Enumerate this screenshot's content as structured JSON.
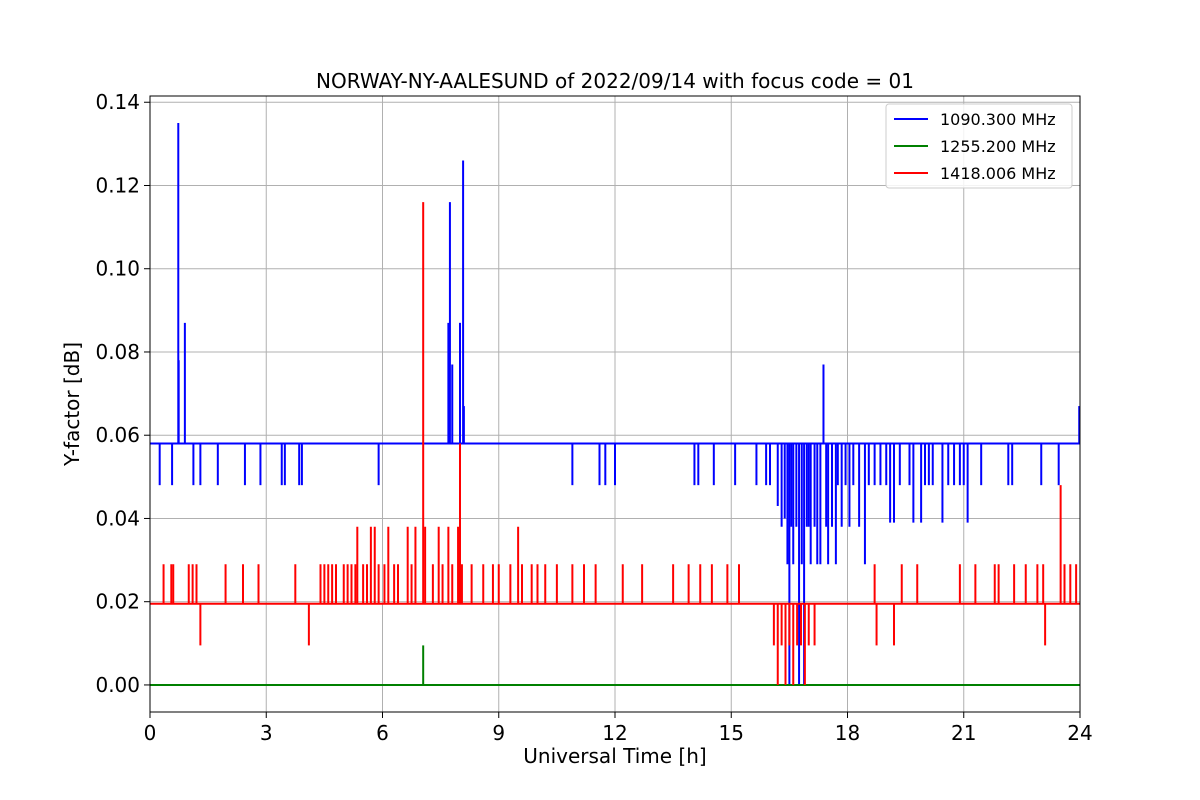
{
  "chart_data": {
    "type": "line",
    "title": "NORWAY-NY-AALESUND of 2022/09/14 with focus code = 01",
    "xlabel": "Universal Time [h]",
    "ylabel": "Y-factor [dB]",
    "xlim": [
      0,
      24
    ],
    "ylim": [
      -0.0065,
      0.1415
    ],
    "x_ticks": [
      0,
      3,
      6,
      9,
      12,
      15,
      18,
      21,
      24
    ],
    "x_tick_labels": [
      "0",
      "3",
      "6",
      "9",
      "12",
      "15",
      "18",
      "21",
      "24"
    ],
    "y_ticks": [
      0.0,
      0.02,
      0.04,
      0.06,
      0.08,
      0.1,
      0.12,
      0.14
    ],
    "y_tick_labels": [
      "0.00",
      "0.02",
      "0.04",
      "0.06",
      "0.08",
      "0.10",
      "0.12",
      "0.14"
    ],
    "grid": true,
    "legend_position": "top-right",
    "series": [
      {
        "name": "1090.300 MHz",
        "color": "#0000ff",
        "baseline": 0.058,
        "spikes": [
          [
            0.25,
            0.048
          ],
          [
            0.57,
            0.048
          ],
          [
            0.73,
            0.135
          ],
          [
            0.74,
            0.078
          ],
          [
            0.9,
            0.087
          ],
          [
            1.12,
            0.048
          ],
          [
            1.3,
            0.048
          ],
          [
            1.75,
            0.048
          ],
          [
            2.45,
            0.048
          ],
          [
            2.85,
            0.048
          ],
          [
            3.4,
            0.048
          ],
          [
            3.48,
            0.048
          ],
          [
            3.85,
            0.048
          ],
          [
            3.92,
            0.048
          ],
          [
            5.9,
            0.048
          ],
          [
            7.7,
            0.087
          ],
          [
            7.74,
            0.116
          ],
          [
            7.8,
            0.077
          ],
          [
            8.0,
            0.087
          ],
          [
            8.08,
            0.126
          ],
          [
            8.1,
            0.067
          ],
          [
            10.9,
            0.048
          ],
          [
            11.6,
            0.048
          ],
          [
            11.75,
            0.048
          ],
          [
            12.0,
            0.048
          ],
          [
            14.05,
            0.048
          ],
          [
            14.15,
            0.048
          ],
          [
            14.55,
            0.048
          ],
          [
            15.1,
            0.048
          ],
          [
            15.65,
            0.048
          ],
          [
            15.9,
            0.048
          ],
          [
            16.0,
            0.048
          ],
          [
            16.2,
            0.043
          ],
          [
            16.3,
            0.038
          ],
          [
            16.38,
            0.04
          ],
          [
            16.45,
            0.029
          ],
          [
            16.5,
            0.0
          ],
          [
            16.55,
            0.038
          ],
          [
            16.6,
            0.029
          ],
          [
            16.68,
            0.038
          ],
          [
            16.75,
            0.0
          ],
          [
            16.82,
            0.029
          ],
          [
            16.88,
            0.0
          ],
          [
            16.95,
            0.038
          ],
          [
            17.0,
            0.038
          ],
          [
            17.05,
            0.029
          ],
          [
            17.15,
            0.038
          ],
          [
            17.22,
            0.029
          ],
          [
            17.3,
            0.029
          ],
          [
            17.38,
            0.077
          ],
          [
            17.45,
            0.038
          ],
          [
            17.5,
            0.029
          ],
          [
            17.6,
            0.038
          ],
          [
            17.7,
            0.029
          ],
          [
            17.75,
            0.048
          ],
          [
            17.85,
            0.038
          ],
          [
            17.95,
            0.048
          ],
          [
            18.05,
            0.038
          ],
          [
            18.15,
            0.048
          ],
          [
            18.3,
            0.038
          ],
          [
            18.45,
            0.029
          ],
          [
            18.55,
            0.048
          ],
          [
            18.7,
            0.048
          ],
          [
            18.85,
            0.048
          ],
          [
            19.0,
            0.048
          ],
          [
            19.1,
            0.039
          ],
          [
            19.2,
            0.039
          ],
          [
            19.35,
            0.048
          ],
          [
            19.6,
            0.048
          ],
          [
            19.7,
            0.039
          ],
          [
            19.9,
            0.039
          ],
          [
            20.0,
            0.048
          ],
          [
            20.1,
            0.048
          ],
          [
            20.2,
            0.048
          ],
          [
            20.45,
            0.039
          ],
          [
            20.6,
            0.048
          ],
          [
            20.75,
            0.048
          ],
          [
            20.9,
            0.048
          ],
          [
            21.0,
            0.048
          ],
          [
            21.1,
            0.039
          ],
          [
            21.45,
            0.048
          ],
          [
            22.15,
            0.048
          ],
          [
            22.25,
            0.048
          ],
          [
            23.0,
            0.048
          ],
          [
            23.45,
            0.048
          ],
          [
            23.98,
            0.067
          ]
        ]
      },
      {
        "name": "1255.200 MHz",
        "color": "#008000",
        "baseline": 0.0,
        "spikes": [
          [
            7.05,
            0.0095
          ]
        ]
      },
      {
        "name": "1418.006 MHz",
        "color": "#ff0000",
        "baseline": 0.0195,
        "spikes": [
          [
            0.35,
            0.029
          ],
          [
            0.55,
            0.029
          ],
          [
            0.6,
            0.029
          ],
          [
            1.0,
            0.029
          ],
          [
            1.1,
            0.029
          ],
          [
            1.2,
            0.029
          ],
          [
            1.3,
            0.0095
          ],
          [
            1.95,
            0.029
          ],
          [
            2.4,
            0.029
          ],
          [
            2.8,
            0.029
          ],
          [
            3.75,
            0.029
          ],
          [
            4.1,
            0.0095
          ],
          [
            4.4,
            0.029
          ],
          [
            4.5,
            0.029
          ],
          [
            4.6,
            0.029
          ],
          [
            4.7,
            0.029
          ],
          [
            4.8,
            0.029
          ],
          [
            5.0,
            0.029
          ],
          [
            5.1,
            0.029
          ],
          [
            5.2,
            0.029
          ],
          [
            5.3,
            0.029
          ],
          [
            5.35,
            0.038
          ],
          [
            5.5,
            0.029
          ],
          [
            5.6,
            0.029
          ],
          [
            5.7,
            0.038
          ],
          [
            5.8,
            0.038
          ],
          [
            5.9,
            0.029
          ],
          [
            6.05,
            0.029
          ],
          [
            6.15,
            0.038
          ],
          [
            6.3,
            0.029
          ],
          [
            6.4,
            0.029
          ],
          [
            6.65,
            0.038
          ],
          [
            6.75,
            0.029
          ],
          [
            6.85,
            0.038
          ],
          [
            7.05,
            0.116
          ],
          [
            7.1,
            0.038
          ],
          [
            7.3,
            0.029
          ],
          [
            7.45,
            0.038
          ],
          [
            7.55,
            0.029
          ],
          [
            7.7,
            0.038
          ],
          [
            7.8,
            0.029
          ],
          [
            7.95,
            0.038
          ],
          [
            8.0,
            0.058
          ],
          [
            8.05,
            0.029
          ],
          [
            8.3,
            0.029
          ],
          [
            8.6,
            0.029
          ],
          [
            8.85,
            0.029
          ],
          [
            9.0,
            0.029
          ],
          [
            9.3,
            0.029
          ],
          [
            9.5,
            0.038
          ],
          [
            9.6,
            0.029
          ],
          [
            9.85,
            0.029
          ],
          [
            10.0,
            0.029
          ],
          [
            10.2,
            0.029
          ],
          [
            10.5,
            0.029
          ],
          [
            10.9,
            0.029
          ],
          [
            11.2,
            0.029
          ],
          [
            11.5,
            0.029
          ],
          [
            12.2,
            0.029
          ],
          [
            12.7,
            0.029
          ],
          [
            13.5,
            0.029
          ],
          [
            13.9,
            0.029
          ],
          [
            14.2,
            0.029
          ],
          [
            14.5,
            0.029
          ],
          [
            14.9,
            0.029
          ],
          [
            15.2,
            0.029
          ],
          [
            16.1,
            0.0095
          ],
          [
            16.2,
            0.0
          ],
          [
            16.3,
            0.0095
          ],
          [
            16.4,
            0.0
          ],
          [
            16.5,
            0.0095
          ],
          [
            16.6,
            0.0
          ],
          [
            16.7,
            0.0095
          ],
          [
            16.8,
            0.0095
          ],
          [
            16.9,
            0.0
          ],
          [
            17.0,
            0.0095
          ],
          [
            17.15,
            0.0095
          ],
          [
            18.7,
            0.029
          ],
          [
            18.75,
            0.0095
          ],
          [
            19.2,
            0.0095
          ],
          [
            19.4,
            0.029
          ],
          [
            19.8,
            0.029
          ],
          [
            20.9,
            0.029
          ],
          [
            21.3,
            0.029
          ],
          [
            21.8,
            0.029
          ],
          [
            21.9,
            0.029
          ],
          [
            22.3,
            0.029
          ],
          [
            22.6,
            0.029
          ],
          [
            22.9,
            0.029
          ],
          [
            23.05,
            0.029
          ],
          [
            23.1,
            0.0095
          ],
          [
            23.5,
            0.048
          ],
          [
            23.6,
            0.029
          ],
          [
            23.75,
            0.029
          ],
          [
            23.9,
            0.029
          ]
        ]
      }
    ]
  }
}
